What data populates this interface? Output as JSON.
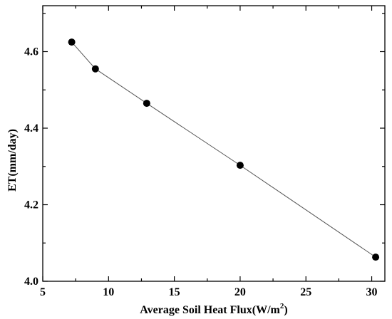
{
  "chart_data": {
    "type": "line",
    "title": "",
    "xlabel": "Average Soil Heat Flux(W/m",
    "xlabel_superscript": "2",
    "xlabel_suffix": ")",
    "ylabel": "ET(mm/day)",
    "xlim": [
      5,
      31
    ],
    "ylim": [
      4.0,
      4.72
    ],
    "xticks": [
      5,
      10,
      15,
      20,
      25,
      30
    ],
    "yticks": [
      4.0,
      4.2,
      4.4,
      4.6
    ],
    "ytick_labels": [
      "4.0",
      "4.2",
      "4.4",
      "4.6"
    ],
    "grid": false,
    "series": [
      {
        "x": [
          7.2,
          9.0,
          12.9,
          20.0,
          30.3
        ],
        "y": [
          4.625,
          4.555,
          4.465,
          4.303,
          4.063
        ]
      }
    ]
  }
}
